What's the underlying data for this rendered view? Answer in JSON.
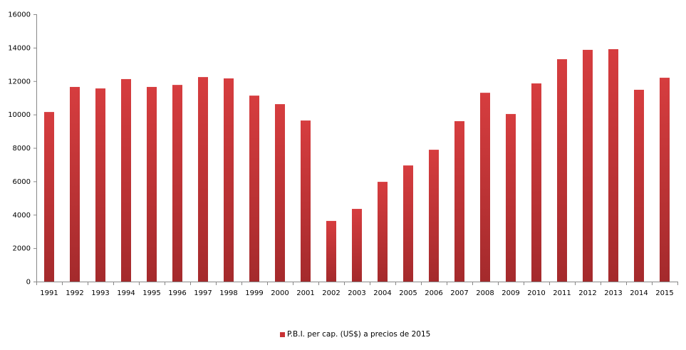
{
  "chart_data": {
    "type": "bar",
    "title": "",
    "xlabel": "",
    "ylabel": "",
    "ylim": [
      0,
      16000
    ],
    "yticks": [
      0,
      2000,
      4000,
      6000,
      8000,
      10000,
      12000,
      14000,
      16000
    ],
    "grid": false,
    "legend_position": "bottom",
    "bar_color": "#c83234",
    "categories": [
      "1991",
      "1992",
      "1993",
      "1994",
      "1995",
      "1996",
      "1997",
      "1998",
      "1999",
      "2000",
      "2001",
      "2002",
      "2003",
      "2004",
      "2005",
      "2006",
      "2007",
      "2008",
      "2009",
      "2010",
      "2011",
      "2012",
      "2013",
      "2014",
      "2015"
    ],
    "series": [
      {
        "name": "P.B.I. per cap. (US$) a precios de 2015",
        "values": [
          10150,
          11650,
          11560,
          12120,
          11650,
          11770,
          12240,
          12160,
          11130,
          10620,
          9640,
          3630,
          4350,
          5970,
          6950,
          7890,
          9600,
          11300,
          10030,
          11860,
          13310,
          13870,
          13910,
          11480,
          12200
        ]
      }
    ]
  }
}
